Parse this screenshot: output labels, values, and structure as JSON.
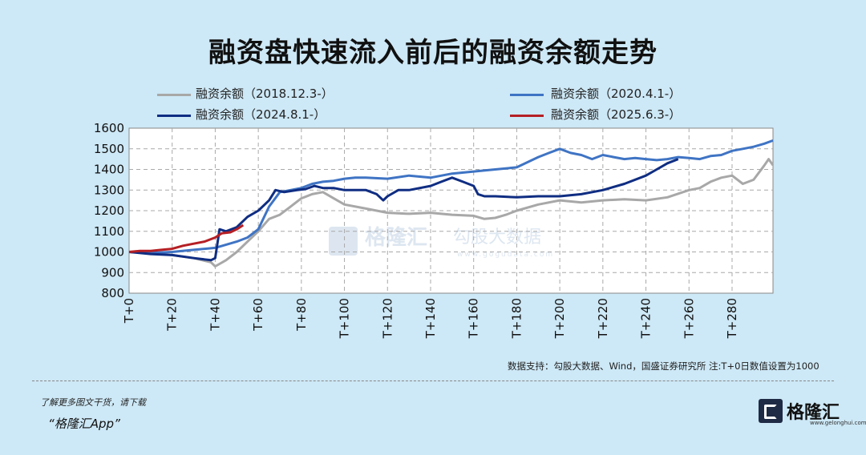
{
  "title": "融资盘快速流入前后的融资余额走势",
  "source_note": "数据支持：勾股大数据、Wind，国盛证券研究所 注:T+0日数值设置为1000",
  "promo": {
    "line1": "了解更多图文干货，请下载",
    "line2": "“格隆汇App”"
  },
  "logo": {
    "text": "格隆汇",
    "url": "www.gelonghui.com"
  },
  "watermark": {
    "brand": "格隆汇",
    "sub": "勾股大数据",
    "url": "www.gogudata.com"
  },
  "colors": {
    "background": "#cde8f6",
    "plot_bg": "#ffffff",
    "gray": "#a8a8a8",
    "lightblue": "#3f74c4",
    "navy": "#0f2d82",
    "red": "#b51f24"
  },
  "chart_data": {
    "type": "line",
    "xlabel": "",
    "ylabel": "",
    "xlim": [
      0,
      299
    ],
    "ylim": [
      800,
      1600
    ],
    "y_ticks": [
      800,
      900,
      1000,
      1100,
      1200,
      1300,
      1400,
      1500,
      1600
    ],
    "x_ticks": [
      0,
      20,
      40,
      60,
      80,
      100,
      120,
      140,
      160,
      180,
      200,
      220,
      240,
      260,
      280
    ],
    "x_tick_labels": [
      "T+0",
      "T+20",
      "T+40",
      "T+60",
      "T+80",
      "T+100",
      "T+120",
      "T+140",
      "T+160",
      "T+180",
      "T+200",
      "T+220",
      "T+240",
      "T+260",
      "T+280"
    ],
    "grid": true,
    "legend_position": "top",
    "series": [
      {
        "name": "融资余额（2018.12.3-）",
        "color": "gray",
        "points": [
          [
            0,
            1000
          ],
          [
            10,
            995
          ],
          [
            20,
            985
          ],
          [
            30,
            970
          ],
          [
            38,
            950
          ],
          [
            40,
            930
          ],
          [
            45,
            960
          ],
          [
            50,
            1000
          ],
          [
            55,
            1050
          ],
          [
            60,
            1100
          ],
          [
            65,
            1160
          ],
          [
            70,
            1180
          ],
          [
            75,
            1220
          ],
          [
            80,
            1260
          ],
          [
            85,
            1280
          ],
          [
            90,
            1290
          ],
          [
            95,
            1260
          ],
          [
            100,
            1230
          ],
          [
            110,
            1210
          ],
          [
            120,
            1190
          ],
          [
            130,
            1185
          ],
          [
            140,
            1190
          ],
          [
            150,
            1180
          ],
          [
            160,
            1175
          ],
          [
            165,
            1160
          ],
          [
            170,
            1165
          ],
          [
            175,
            1180
          ],
          [
            180,
            1200
          ],
          [
            190,
            1230
          ],
          [
            200,
            1250
          ],
          [
            210,
            1240
          ],
          [
            220,
            1250
          ],
          [
            230,
            1255
          ],
          [
            240,
            1250
          ],
          [
            250,
            1265
          ],
          [
            260,
            1300
          ],
          [
            265,
            1310
          ],
          [
            270,
            1340
          ],
          [
            275,
            1360
          ],
          [
            280,
            1370
          ],
          [
            285,
            1330
          ],
          [
            290,
            1350
          ],
          [
            295,
            1420
          ],
          [
            297,
            1450
          ],
          [
            299,
            1420
          ]
        ]
      },
      {
        "name": "融资余额（2020.4.1-）",
        "color": "lightblue",
        "points": [
          [
            0,
            1000
          ],
          [
            10,
            995
          ],
          [
            20,
            1000
          ],
          [
            30,
            1010
          ],
          [
            40,
            1020
          ],
          [
            50,
            1050
          ],
          [
            55,
            1070
          ],
          [
            60,
            1110
          ],
          [
            65,
            1220
          ],
          [
            70,
            1290
          ],
          [
            75,
            1300
          ],
          [
            80,
            1310
          ],
          [
            85,
            1330
          ],
          [
            90,
            1340
          ],
          [
            95,
            1345
          ],
          [
            100,
            1355
          ],
          [
            105,
            1360
          ],
          [
            110,
            1360
          ],
          [
            120,
            1355
          ],
          [
            130,
            1370
          ],
          [
            140,
            1360
          ],
          [
            150,
            1380
          ],
          [
            160,
            1390
          ],
          [
            170,
            1400
          ],
          [
            180,
            1410
          ],
          [
            190,
            1460
          ],
          [
            195,
            1480
          ],
          [
            200,
            1500
          ],
          [
            205,
            1480
          ],
          [
            210,
            1470
          ],
          [
            215,
            1450
          ],
          [
            220,
            1470
          ],
          [
            225,
            1460
          ],
          [
            230,
            1450
          ],
          [
            235,
            1455
          ],
          [
            240,
            1450
          ],
          [
            245,
            1445
          ],
          [
            250,
            1450
          ],
          [
            255,
            1460
          ],
          [
            260,
            1455
          ],
          [
            265,
            1450
          ],
          [
            270,
            1465
          ],
          [
            275,
            1470
          ],
          [
            280,
            1490
          ],
          [
            285,
            1500
          ],
          [
            290,
            1510
          ],
          [
            295,
            1525
          ],
          [
            299,
            1540
          ]
        ]
      },
      {
        "name": "融资余额（2024.8.1-）",
        "color": "navy",
        "points": [
          [
            0,
            1000
          ],
          [
            10,
            990
          ],
          [
            20,
            985
          ],
          [
            30,
            970
          ],
          [
            38,
            960
          ],
          [
            40,
            970
          ],
          [
            42,
            1110
          ],
          [
            45,
            1100
          ],
          [
            50,
            1120
          ],
          [
            55,
            1170
          ],
          [
            60,
            1200
          ],
          [
            65,
            1250
          ],
          [
            68,
            1300
          ],
          [
            72,
            1290
          ],
          [
            78,
            1300
          ],
          [
            82,
            1305
          ],
          [
            86,
            1320
          ],
          [
            90,
            1310
          ],
          [
            95,
            1310
          ],
          [
            100,
            1300
          ],
          [
            105,
            1300
          ],
          [
            110,
            1300
          ],
          [
            115,
            1280
          ],
          [
            118,
            1250
          ],
          [
            120,
            1270
          ],
          [
            125,
            1300
          ],
          [
            130,
            1300
          ],
          [
            140,
            1320
          ],
          [
            145,
            1340
          ],
          [
            150,
            1360
          ],
          [
            155,
            1340
          ],
          [
            160,
            1320
          ],
          [
            162,
            1280
          ],
          [
            165,
            1270
          ],
          [
            170,
            1270
          ],
          [
            180,
            1265
          ],
          [
            190,
            1270
          ],
          [
            200,
            1270
          ],
          [
            210,
            1280
          ],
          [
            220,
            1300
          ],
          [
            230,
            1330
          ],
          [
            240,
            1370
          ],
          [
            245,
            1400
          ],
          [
            250,
            1430
          ],
          [
            255,
            1450
          ]
        ]
      },
      {
        "name": "融资余额（2025.6.3-）",
        "color": "red",
        "points": [
          [
            0,
            1000
          ],
          [
            5,
            1005
          ],
          [
            10,
            1005
          ],
          [
            15,
            1010
          ],
          [
            20,
            1015
          ],
          [
            25,
            1030
          ],
          [
            30,
            1040
          ],
          [
            35,
            1050
          ],
          [
            40,
            1070
          ],
          [
            43,
            1090
          ],
          [
            47,
            1095
          ],
          [
            50,
            1110
          ],
          [
            53,
            1130
          ]
        ]
      }
    ]
  }
}
